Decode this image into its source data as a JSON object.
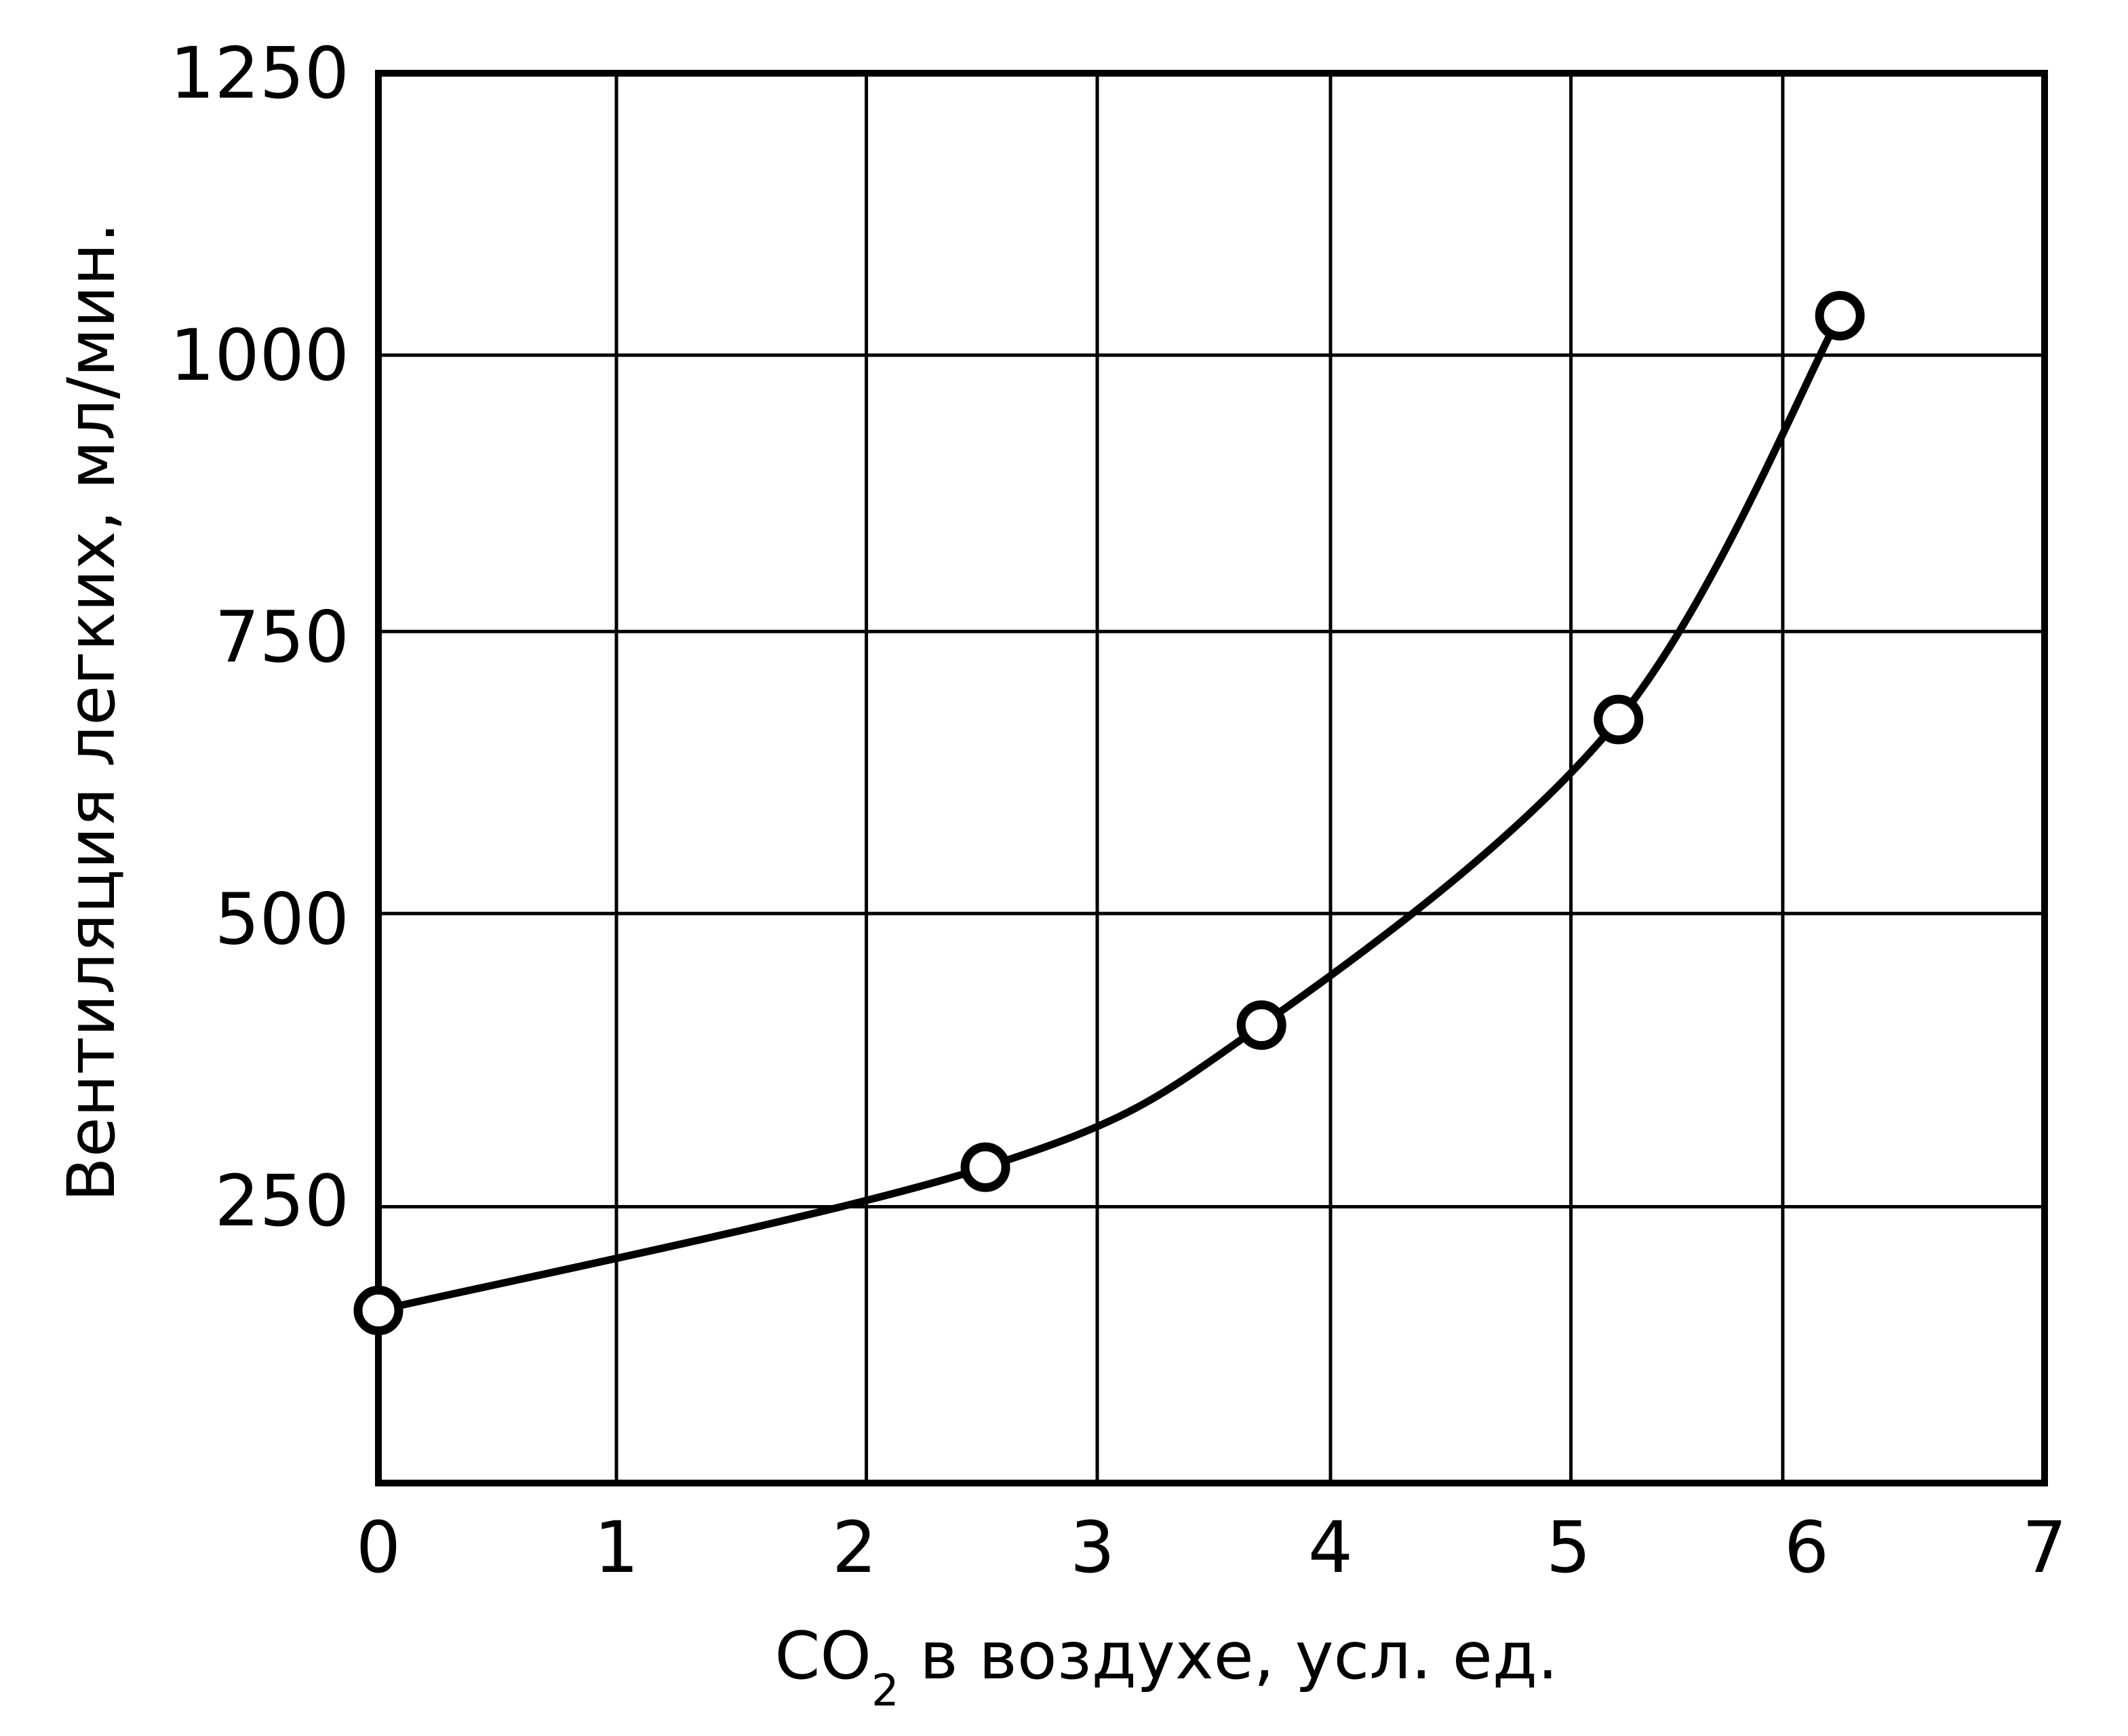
{
  "chart_data": {
    "type": "line",
    "title": "",
    "xlabel": {
      "main": "CO",
      "subscript": "2",
      "rest": " в воздухе, усл. ед."
    },
    "ylabel": "Вентиляция легких, мл/мин.",
    "xlim": [
      0,
      7
    ],
    "ylim": [
      0,
      1250
    ],
    "x_ticks": [
      0,
      1,
      2,
      3,
      4,
      5,
      6,
      7
    ],
    "x_tick_labels": [
      "0",
      "1",
      "2",
      "3",
      "4",
      "5",
      "6",
      "7"
    ],
    "y_ticks": [
      250,
      500,
      750,
      1000,
      1250
    ],
    "y_tick_labels": [
      "250",
      "500",
      "750",
      "1000",
      "1250"
    ],
    "x_gridlines": [
      0,
      1,
      2.05,
      3.02,
      4.0,
      5.01,
      5.9,
      7
    ],
    "y_gridlines": [
      0,
      245,
      505,
      755,
      1000,
      1250
    ],
    "grid": true,
    "legend": "none",
    "line_color": "#000000",
    "series": [
      {
        "marker": "open-circle",
        "points": [
          {
            "x": 0.0,
            "y": 153
          },
          {
            "x": 2.55,
            "y": 280
          },
          {
            "x": 3.71,
            "y": 406
          },
          {
            "x": 5.21,
            "y": 677
          },
          {
            "x": 6.14,
            "y": 1035
          }
        ]
      }
    ]
  }
}
